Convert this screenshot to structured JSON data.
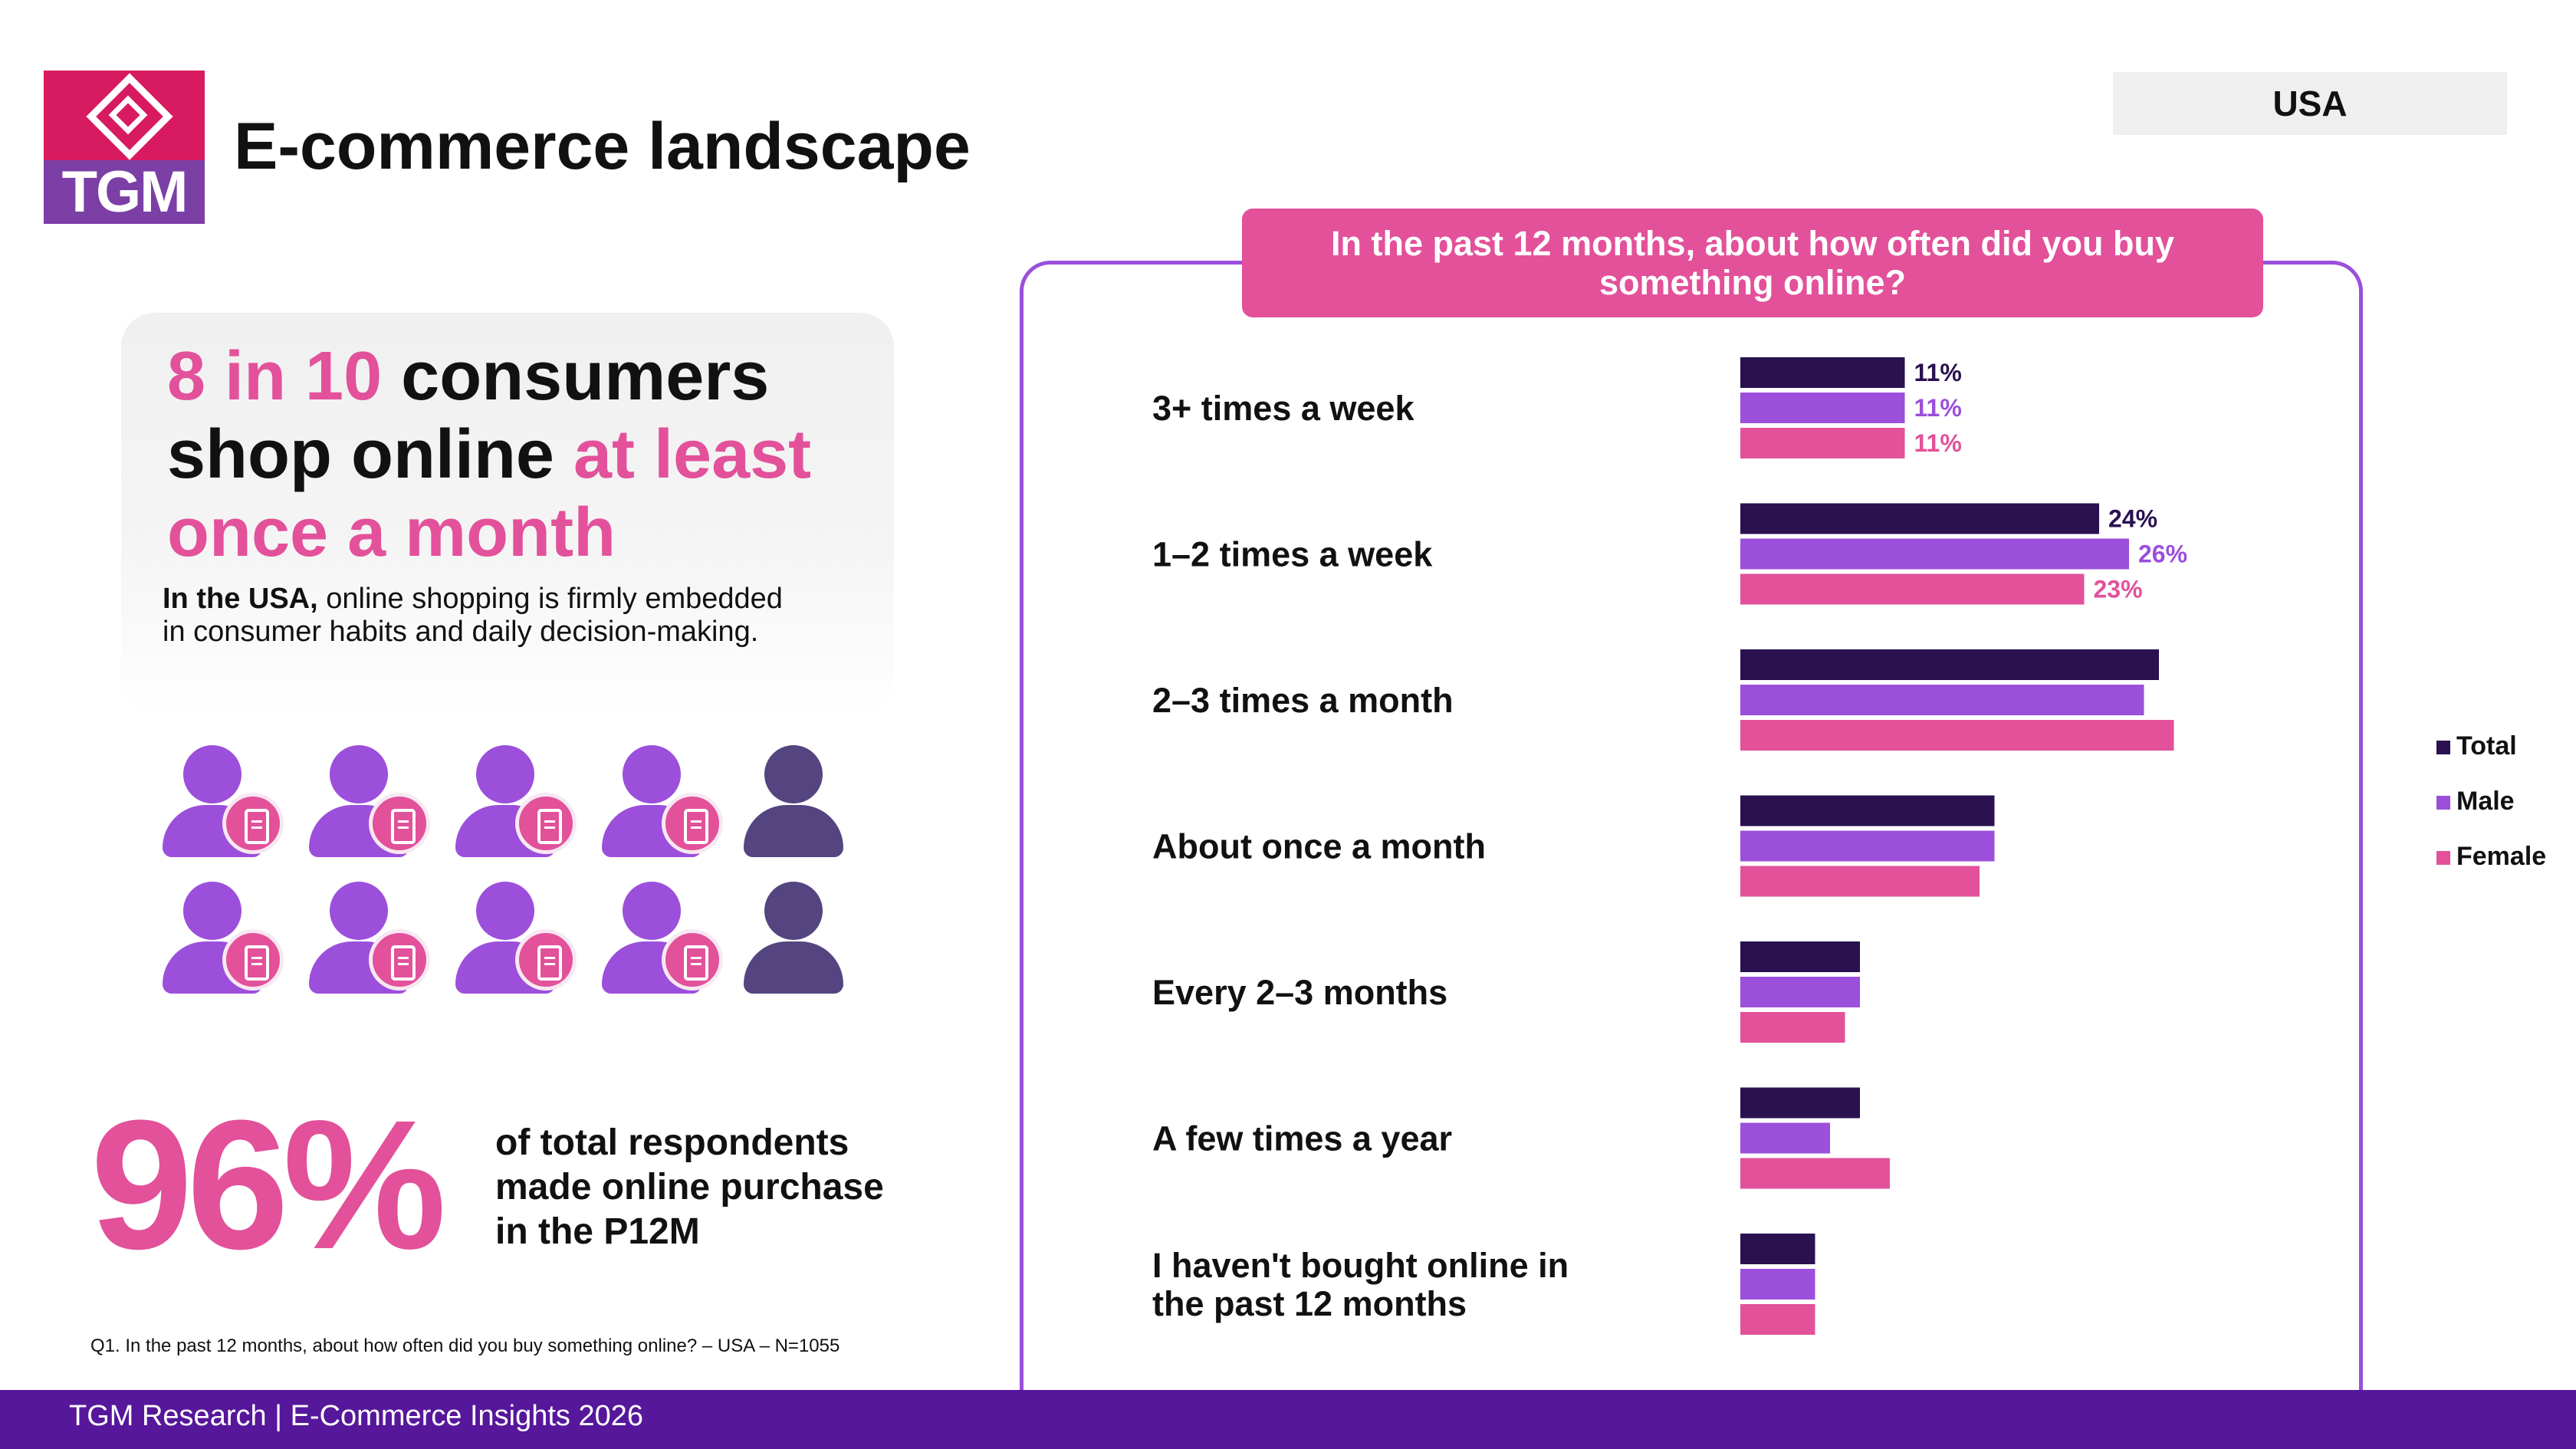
{
  "header": {
    "logo_text": "TGM",
    "title": "E-commerce landscape",
    "country": "USA"
  },
  "headline": {
    "part1": "8 in 10",
    "part2": " consumers shop online ",
    "part3": "at least once a month"
  },
  "subtext": {
    "bold": "In the USA,",
    "rest": " online shopping is firmly embedded in consumer habits and daily decision-making."
  },
  "people_grid": {
    "buyers": 8,
    "total": 10
  },
  "stat": {
    "number": "96%",
    "text": "of total respondents made online purchase in the P12M"
  },
  "footnote": "Q1. In the past 12 months, about how often did you buy something online? – USA – N=1055",
  "footer": "TGM Research | E-Commerce Insights 2026",
  "colors": {
    "total": "#2a1150",
    "male": "#9b4fdb",
    "female": "#e2519a",
    "accent": "#e2519a",
    "footer": "#56179b"
  },
  "chart_data": {
    "type": "bar",
    "orientation": "horizontal",
    "title": "In the past 12 months, about how often did you buy something online?",
    "categories": [
      "3+ times a week",
      "1–2 times a week",
      "2–3 times a month",
      "About once a month",
      "Every 2–3 months",
      "A few times a year",
      "I haven't bought online in the past 12 months"
    ],
    "series": [
      {
        "name": "Total",
        "values": [
          11,
          24,
          28,
          17,
          8,
          8,
          5
        ],
        "labels": [
          "11%",
          "24%",
          "",
          "",
          "",
          "",
          ""
        ]
      },
      {
        "name": "Male",
        "values": [
          11,
          26,
          27,
          17,
          8,
          6,
          5
        ],
        "labels": [
          "11%",
          "26%",
          "",
          "",
          "",
          "",
          ""
        ]
      },
      {
        "name": "Female",
        "values": [
          11,
          23,
          29,
          16,
          7,
          10,
          5
        ],
        "labels": [
          "11%",
          "23%",
          "",
          "",
          "",
          "",
          ""
        ]
      }
    ],
    "legend_position": "right",
    "xlim": [
      0,
      30
    ],
    "grid": false
  }
}
